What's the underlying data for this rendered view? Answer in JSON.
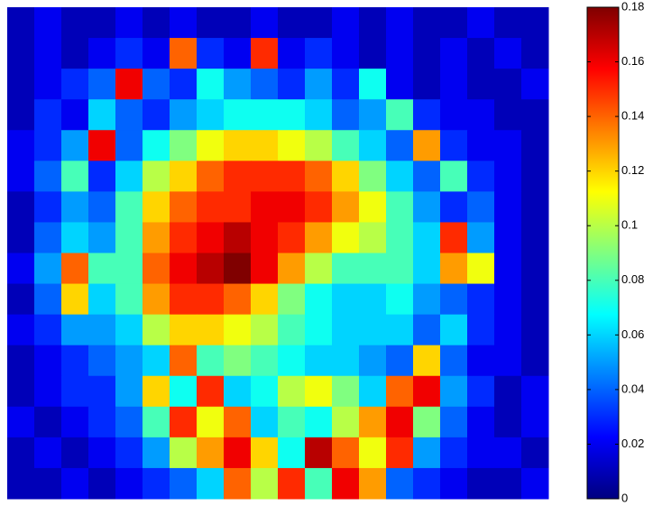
{
  "chart_data": {
    "type": "heatmap",
    "colormap": "jet",
    "zlim": [
      0,
      0.18
    ],
    "zticks": [
      0,
      0.02,
      0.04,
      0.06,
      0.08,
      0.1,
      0.12,
      0.14,
      0.16,
      0.18
    ],
    "z": [
      [
        0.01,
        0.02,
        0.01,
        0.01,
        0.02,
        0.01,
        0.02,
        0.01,
        0.01,
        0.02,
        0.01,
        0.01,
        0.02,
        0.01,
        0.02,
        0.01,
        0.01,
        0.02,
        0.01,
        0.01
      ],
      [
        0.01,
        0.02,
        0.01,
        0.02,
        0.03,
        0.02,
        0.14,
        0.03,
        0.02,
        0.15,
        0.02,
        0.03,
        0.02,
        0.01,
        0.02,
        0.01,
        0.02,
        0.01,
        0.02,
        0.01
      ],
      [
        0.01,
        0.02,
        0.03,
        0.04,
        0.16,
        0.04,
        0.03,
        0.07,
        0.05,
        0.04,
        0.03,
        0.05,
        0.03,
        0.07,
        0.02,
        0.01,
        0.02,
        0.01,
        0.01,
        0.02
      ],
      [
        0.01,
        0.03,
        0.02,
        0.06,
        0.04,
        0.03,
        0.05,
        0.06,
        0.07,
        0.07,
        0.07,
        0.06,
        0.04,
        0.05,
        0.08,
        0.03,
        0.02,
        0.02,
        0.01,
        0.01
      ],
      [
        0.02,
        0.03,
        0.05,
        0.16,
        0.04,
        0.07,
        0.09,
        0.11,
        0.12,
        0.12,
        0.11,
        0.1,
        0.08,
        0.06,
        0.04,
        0.13,
        0.03,
        0.02,
        0.02,
        0.01
      ],
      [
        0.02,
        0.04,
        0.08,
        0.03,
        0.06,
        0.1,
        0.12,
        0.14,
        0.15,
        0.15,
        0.15,
        0.14,
        0.12,
        0.09,
        0.06,
        0.04,
        0.08,
        0.03,
        0.02,
        0.01
      ],
      [
        0.01,
        0.03,
        0.05,
        0.04,
        0.08,
        0.12,
        0.14,
        0.15,
        0.15,
        0.16,
        0.16,
        0.15,
        0.13,
        0.11,
        0.08,
        0.05,
        0.03,
        0.04,
        0.02,
        0.01
      ],
      [
        0.01,
        0.04,
        0.06,
        0.05,
        0.08,
        0.13,
        0.15,
        0.16,
        0.17,
        0.16,
        0.15,
        0.13,
        0.11,
        0.1,
        0.08,
        0.06,
        0.15,
        0.05,
        0.02,
        0.01
      ],
      [
        0.02,
        0.05,
        0.14,
        0.08,
        0.08,
        0.14,
        0.16,
        0.17,
        0.18,
        0.16,
        0.13,
        0.1,
        0.08,
        0.08,
        0.08,
        0.06,
        0.13,
        0.11,
        0.02,
        0.01
      ],
      [
        0.01,
        0.04,
        0.12,
        0.06,
        0.08,
        0.13,
        0.15,
        0.15,
        0.14,
        0.12,
        0.09,
        0.07,
        0.06,
        0.06,
        0.07,
        0.05,
        0.04,
        0.03,
        0.02,
        0.01
      ],
      [
        0.02,
        0.03,
        0.05,
        0.05,
        0.06,
        0.1,
        0.12,
        0.12,
        0.11,
        0.1,
        0.08,
        0.07,
        0.06,
        0.06,
        0.06,
        0.04,
        0.06,
        0.03,
        0.02,
        0.01
      ],
      [
        0.01,
        0.02,
        0.03,
        0.04,
        0.05,
        0.06,
        0.14,
        0.08,
        0.09,
        0.08,
        0.07,
        0.06,
        0.06,
        0.05,
        0.04,
        0.12,
        0.04,
        0.02,
        0.02,
        0.01
      ],
      [
        0.01,
        0.02,
        0.03,
        0.03,
        0.05,
        0.12,
        0.07,
        0.15,
        0.06,
        0.07,
        0.1,
        0.11,
        0.09,
        0.06,
        0.14,
        0.16,
        0.05,
        0.03,
        0.01,
        0.02
      ],
      [
        0.02,
        0.01,
        0.02,
        0.03,
        0.04,
        0.08,
        0.15,
        0.11,
        0.14,
        0.06,
        0.08,
        0.07,
        0.1,
        0.13,
        0.16,
        0.09,
        0.04,
        0.02,
        0.01,
        0.02
      ],
      [
        0.01,
        0.02,
        0.01,
        0.02,
        0.03,
        0.05,
        0.1,
        0.13,
        0.16,
        0.12,
        0.07,
        0.17,
        0.14,
        0.11,
        0.15,
        0.05,
        0.03,
        0.02,
        0.02,
        0.01
      ],
      [
        0.01,
        0.01,
        0.02,
        0.01,
        0.02,
        0.03,
        0.04,
        0.06,
        0.14,
        0.1,
        0.15,
        0.08,
        0.16,
        0.13,
        0.04,
        0.03,
        0.02,
        0.01,
        0.01,
        0.02
      ]
    ]
  }
}
